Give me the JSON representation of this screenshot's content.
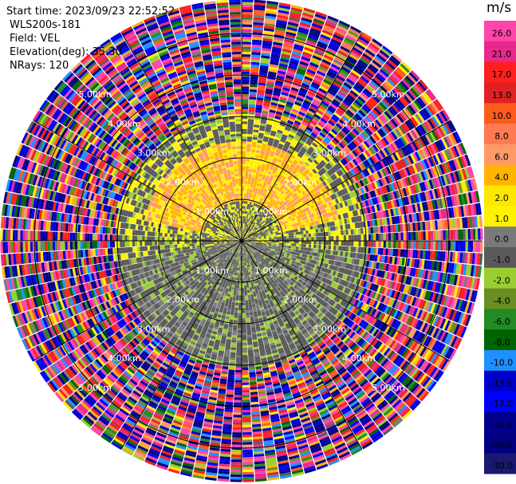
{
  "header": {
    "start_time": "Start time: 2023/09/23 22:52:52",
    "instrument": "WLS200s-181",
    "field": "Field: VEL",
    "elevation": "Elevation(deg): 35.30",
    "nrays": "NRays: 120"
  },
  "colorbar": {
    "unit": "m/s",
    "ticks": [
      "26.0",
      "21.0",
      "17.0",
      "13.0",
      "10.0",
      "8.0",
      "6.0",
      "4.0",
      "2.0",
      "1.0",
      "0.0",
      "-1.0",
      "-2.0",
      "-4.0",
      "-6.0",
      "-8.0",
      "-10.0",
      "-13.0",
      "-17.0",
      "-21.0",
      "-26.0",
      "-30.0"
    ],
    "colors": [
      "#ff44aa",
      "#e8288c",
      "#ff1f1f",
      "#e02222",
      "#ff5a1e",
      "#ff7a50",
      "#ff9966",
      "#ffb400",
      "#ffe600",
      "#fff200",
      "#7a7a7a",
      "#5a5a5a",
      "#9acd32",
      "#6b8e23",
      "#228b22",
      "#006400",
      "#1e90ff",
      "#0000cd",
      "#0000ff",
      "#00008b",
      "#000080",
      "#191970"
    ]
  },
  "chart_data": {
    "type": "heatmap",
    "projection": "polar-ppi",
    "field": "VEL",
    "nrays": 120,
    "range_rings_km": [
      1.0,
      2.0,
      3.0,
      4.0,
      5.0
    ],
    "range_ring_labels": [
      "1.00km",
      "2.00km",
      "3.00km",
      "4.00km",
      "5.00km"
    ],
    "max_range_km": 5.8,
    "inner_zone": {
      "range_km": [
        0.0,
        3.1
      ],
      "north_sector_values": [
        1.0,
        2.0,
        4.0,
        0.0
      ],
      "south_sector_values": [
        -1.0,
        -2.0,
        -4.0,
        0.0
      ]
    },
    "noise_zone_km": [
      3.1,
      5.8
    ],
    "vmin": -30.0,
    "vmax": 26.0
  }
}
